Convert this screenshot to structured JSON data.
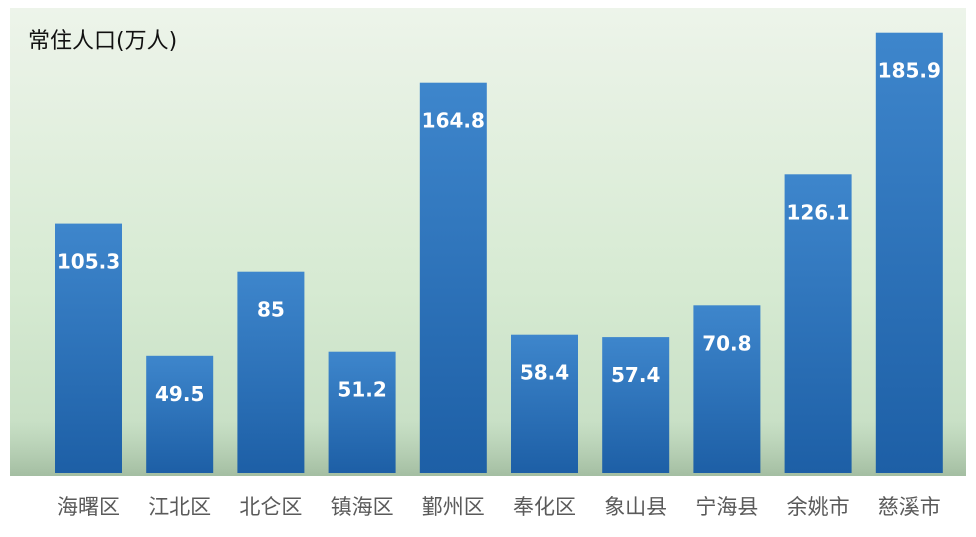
{
  "chart_data": {
    "type": "bar",
    "title": "常住人口(万人)",
    "categories": [
      "海曙区",
      "江北区",
      "北仑区",
      "镇海区",
      "鄞州区",
      "奉化区",
      "象山县",
      "宁海县",
      "余姚市",
      "慈溪市"
    ],
    "values": [
      105.3,
      49.5,
      85,
      51.2,
      164.8,
      58.4,
      57.4,
      70.8,
      126.1,
      185.9
    ],
    "value_labels": [
      "105.3",
      "49.5",
      "85",
      "51.2",
      "164.8",
      "58.4",
      "57.4",
      "70.8",
      "126.1",
      "185.9"
    ],
    "ylim": [
      0,
      190
    ],
    "grid": false,
    "legend": "none",
    "colors": {
      "bar_top": "#3e86cc",
      "bar_bottom": "#1d5fa6",
      "value_label": "#ffffff",
      "category_label": "#5a5a5a",
      "title": "#111111",
      "background_top": "#edf4ea",
      "background_mid": "#d6ead2",
      "background_bottom": "#c3dcc1"
    }
  }
}
